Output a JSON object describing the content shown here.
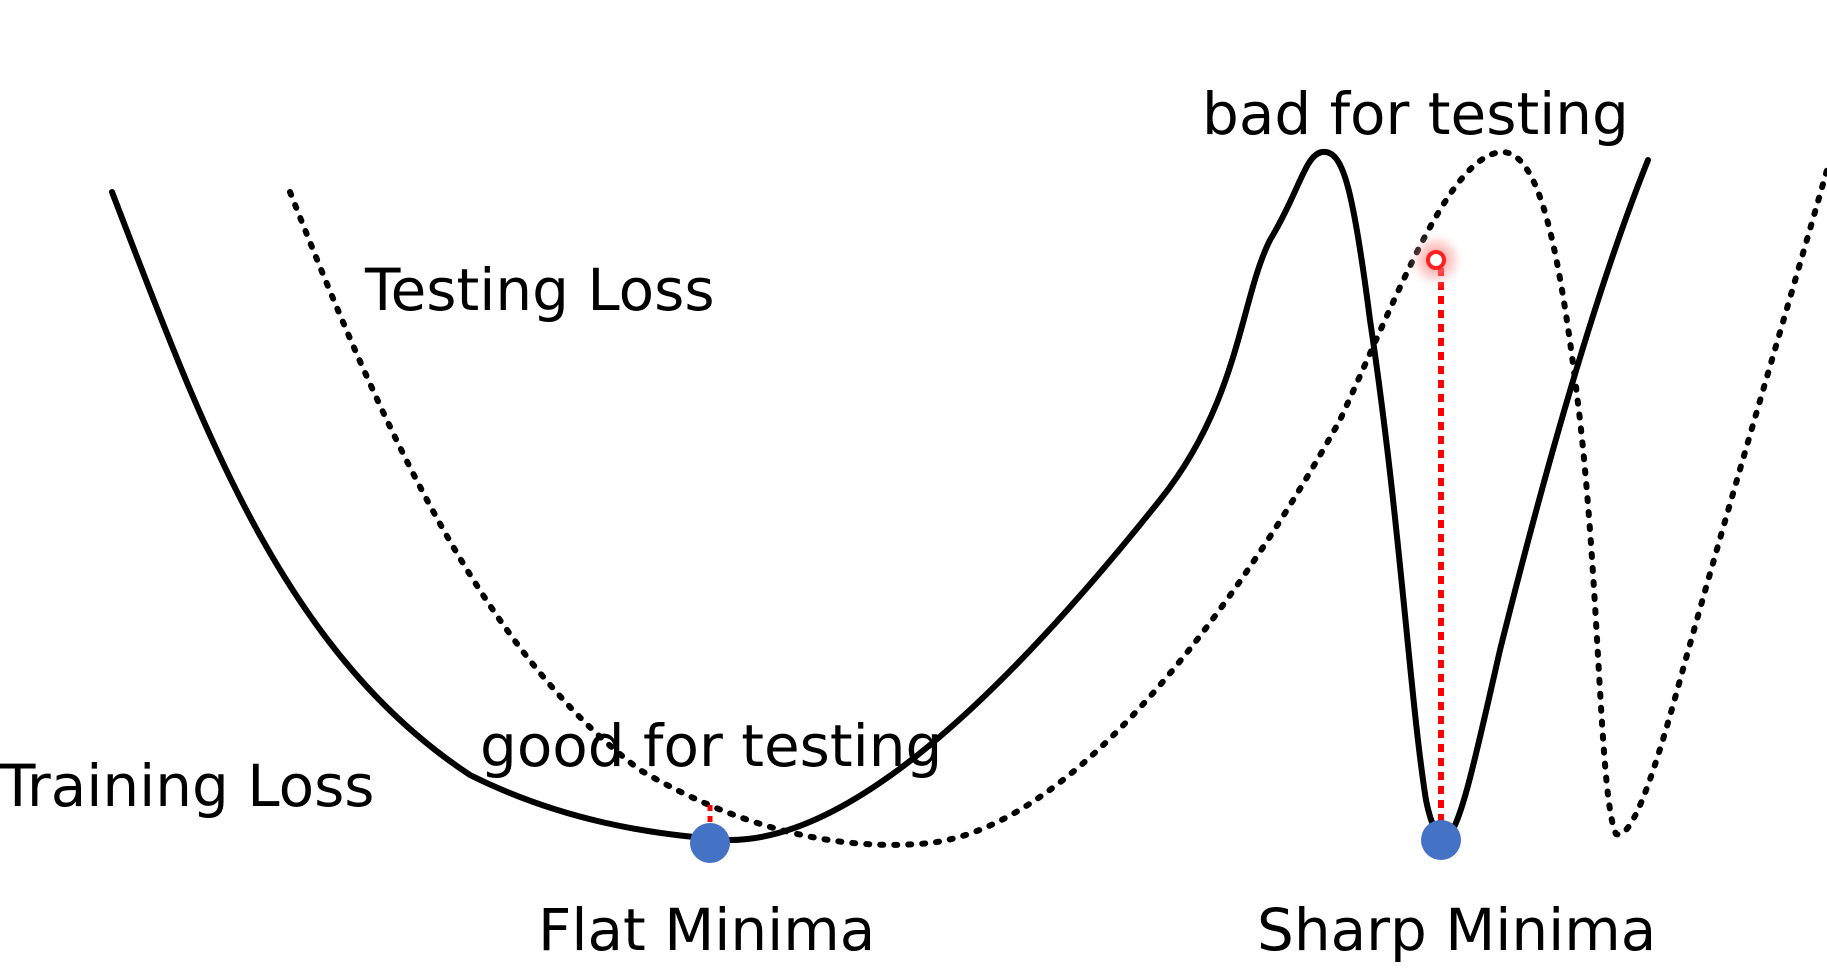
{
  "labels": {
    "training_loss": "Training Loss",
    "testing_loss": "Testing Loss",
    "good_for_testing": "good for testing",
    "bad_for_testing": "bad for testing",
    "flat_minima": "Flat Minima",
    "sharp_minima": "Sharp Minima"
  },
  "colors": {
    "curve": "#000000",
    "minima_marker": "#4472C4",
    "gap_line": "#FF0000"
  }
}
